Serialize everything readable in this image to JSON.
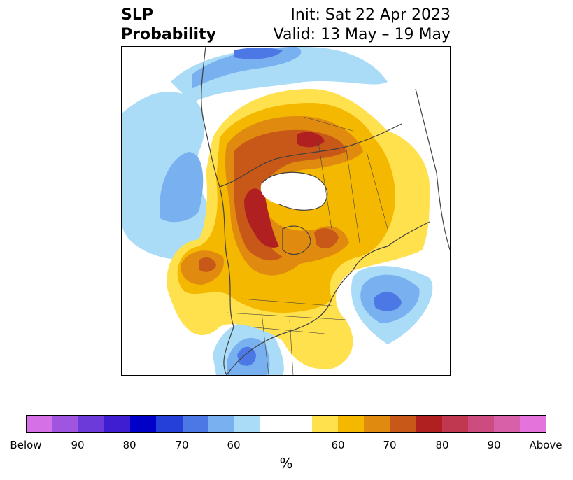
{
  "title": {
    "left": [
      "SLP",
      "Probability"
    ],
    "right": [
      "Init: Sat 22 Apr 2023",
      "Valid: 13 May – 19 May"
    ]
  },
  "colorbar": {
    "colors": [
      "#d670e6",
      "#a055e0",
      "#6c3ad8",
      "#3e1ed0",
      "#0000c8",
      "#2540d8",
      "#4c78e6",
      "#78b0f0",
      "#aadcf8",
      "#ffffff",
      "#ffffff",
      "#ffe04d",
      "#f5b800",
      "#e08a10",
      "#c85818",
      "#b02020",
      "#c03850",
      "#cc4c80",
      "#d860a8",
      "#e474dc"
    ],
    "ticks": [
      "Below",
      "90",
      "80",
      "70",
      "60",
      "60",
      "70",
      "80",
      "90",
      "Above"
    ],
    "units": "%"
  },
  "map": {
    "colors": {
      "light_blue": "#aadcf8",
      "mid_blue": "#78b0f0",
      "blue": "#4c78e6",
      "yellow": "#ffe04d",
      "gold": "#f5b800",
      "orange": "#e08a10",
      "burnt": "#c85818",
      "red": "#b02020",
      "coast": "#404040"
    }
  }
}
